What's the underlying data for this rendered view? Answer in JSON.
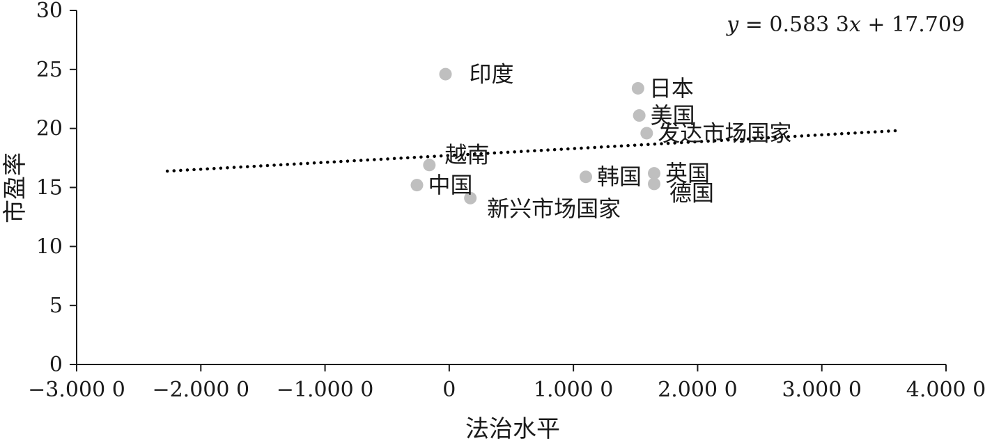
{
  "chart_data": {
    "type": "scatter",
    "xlabel": "法治水平",
    "ylabel": "市盈率",
    "xlim": [
      -3,
      4
    ],
    "ylim": [
      0,
      30
    ],
    "x_ticks": [
      {
        "value": -3,
        "label": "−3.000 0"
      },
      {
        "value": -2,
        "label": "−2.000 0"
      },
      {
        "value": -1,
        "label": "−1.000 0"
      },
      {
        "value": 0,
        "label": "0"
      },
      {
        "value": 1,
        "label": "1.000 0"
      },
      {
        "value": 2,
        "label": "2.000 0"
      },
      {
        "value": 3,
        "label": "3.000 0"
      },
      {
        "value": 4,
        "label": "4.000 0"
      }
    ],
    "y_ticks": [
      {
        "value": 0,
        "label": "0"
      },
      {
        "value": 5,
        "label": "5"
      },
      {
        "value": 10,
        "label": "10"
      },
      {
        "value": 15,
        "label": "15"
      },
      {
        "value": 20,
        "label": "20"
      },
      {
        "value": 25,
        "label": "25"
      },
      {
        "value": 30,
        "label": "30"
      }
    ],
    "points": [
      {
        "label": "印度",
        "x": -0.03,
        "y": 24.6,
        "label_pos": "right-far"
      },
      {
        "label": "日本",
        "x": 1.52,
        "y": 23.4,
        "label_pos": "right"
      },
      {
        "label": "美国",
        "x": 1.53,
        "y": 21.1,
        "label_pos": "right"
      },
      {
        "label": "发达市场国家",
        "x": 1.59,
        "y": 19.6,
        "label_pos": "right"
      },
      {
        "label": "越南",
        "x": -0.16,
        "y": 16.9,
        "label_pos": "upper-right"
      },
      {
        "label": "中国",
        "x": -0.26,
        "y": 15.2,
        "label_pos": "right"
      },
      {
        "label": "新兴市场国家",
        "x": 0.17,
        "y": 14.1,
        "label_pos": "lower-right"
      },
      {
        "label": "韩国",
        "x": 1.1,
        "y": 15.9,
        "label_pos": "right"
      },
      {
        "label": "英国",
        "x": 1.65,
        "y": 16.2,
        "label_pos": "right"
      },
      {
        "label": "德国",
        "x": 1.65,
        "y": 15.3,
        "label_pos": "right-low"
      }
    ],
    "trendline": {
      "slope": 0.5833,
      "intercept": 17.709,
      "x_range": [
        -2.27,
        3.63
      ],
      "style": "dotted",
      "equation_prefix": "y",
      "equation_suffix": " = 0.583 3",
      "equation_x": "x",
      "equation_tail": " + 17.709"
    },
    "point_color": "#bfbfbf",
    "trend_color": "#000000"
  }
}
